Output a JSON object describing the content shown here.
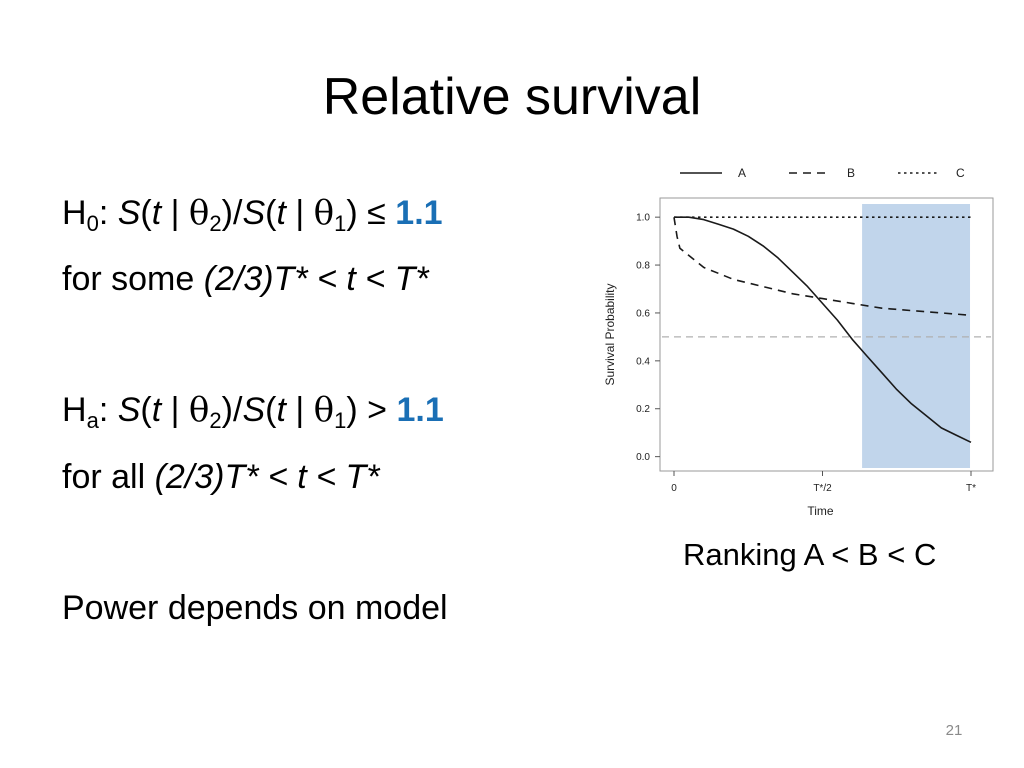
{
  "slide": {
    "title": "Relative survival",
    "page_number": "21",
    "hypotheses": {
      "h0": {
        "H": "H",
        "sub": "0",
        "colon": ":",
        "S1": "S",
        "open1": "(",
        "t1": "t",
        "bar1": " | ",
        "theta1": "θ",
        "thetasub1": "2",
        "mid": ")/",
        "S2": "S",
        "open2": "(",
        "t2": "t",
        "bar2": " | ",
        "theta2": "θ",
        "thetasub2": "1",
        "close": ")",
        "op": "≤",
        "value": "1.1",
        "cond_prefix": "for some",
        "cond_range": "(2/3)T* < t < T*"
      },
      "ha": {
        "H": "H",
        "sub": "a",
        "colon": ":",
        "S1": "S",
        "open1": "(",
        "t1": "t",
        "bar1": " | ",
        "theta1": "θ",
        "thetasub1": "2",
        "mid": ")/",
        "S2": "S",
        "open2": "(",
        "t2": "t",
        "bar2": " | ",
        "theta2": "θ",
        "thetasub2": "1",
        "close": ")",
        "op": ">",
        "value": "1.1",
        "cond_prefix": "for all",
        "cond_range": "(2/3)T* < t < T*"
      }
    },
    "power_note": "Power depends on model",
    "ranking": "Ranking A < B < C",
    "colors": {
      "accent": "#1a6fb5",
      "shade": "#c1d5eb",
      "reference_line": "#b0b0b0",
      "curve": "#1a1a1a"
    }
  },
  "chart_data": {
    "type": "line",
    "xlabel": "Time",
    "ylabel": "Survival Probability",
    "xlim": [
      0,
      1
    ],
    "ylim": [
      -0.06,
      1.08
    ],
    "x_ticks": [
      {
        "value": 0,
        "label": "0"
      },
      {
        "value": 0.5,
        "label": "T*/2"
      },
      {
        "value": 1,
        "label": "T*"
      }
    ],
    "y_ticks": [
      0.0,
      0.2,
      0.4,
      0.6,
      0.8,
      1.0
    ],
    "y_tick_labels": [
      "0.0",
      "0.2",
      "0.4",
      "0.6",
      "0.8",
      "1.0"
    ],
    "legend_position": "top",
    "shaded_region": {
      "x_from": 0.6333,
      "x_to": 0.9967
    },
    "reference_line": {
      "y": 0.5
    },
    "series": [
      {
        "name": "A",
        "style": "solid",
        "x": [
          0,
          0.05,
          0.1,
          0.15,
          0.2,
          0.25,
          0.3,
          0.35,
          0.4,
          0.45,
          0.5,
          0.55,
          0.6,
          0.65,
          0.7,
          0.75,
          0.8,
          0.85,
          0.9,
          0.95,
          1.0
        ],
        "y": [
          1.0,
          1.0,
          0.99,
          0.97,
          0.95,
          0.92,
          0.88,
          0.83,
          0.77,
          0.71,
          0.64,
          0.57,
          0.49,
          0.42,
          0.35,
          0.28,
          0.22,
          0.17,
          0.12,
          0.09,
          0.06
        ]
      },
      {
        "name": "B",
        "style": "dashed",
        "x": [
          0,
          0.01,
          0.02,
          0.05,
          0.1,
          0.2,
          0.3,
          0.4,
          0.5,
          0.6,
          0.7,
          0.8,
          0.9,
          1.0
        ],
        "y": [
          1.0,
          0.92,
          0.87,
          0.84,
          0.79,
          0.74,
          0.71,
          0.68,
          0.66,
          0.64,
          0.62,
          0.61,
          0.6,
          0.59
        ]
      },
      {
        "name": "C",
        "style": "dotted",
        "x": [
          0,
          1
        ],
        "y": [
          1.0,
          1.0
        ]
      }
    ]
  }
}
